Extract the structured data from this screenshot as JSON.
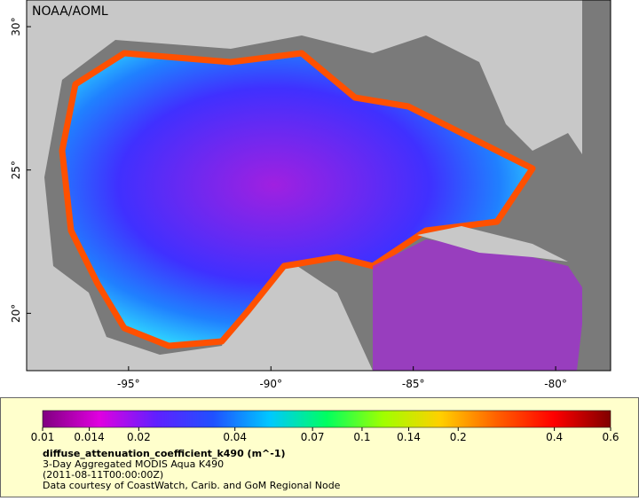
{
  "header": {
    "title": "NOAA/AOML"
  },
  "map": {
    "xlim": [
      -98.58,
      -78.07
    ],
    "ylim": [
      18.0,
      30.93
    ],
    "xticks": [
      {
        "value": -95,
        "label": "-95°"
      },
      {
        "value": -90,
        "label": "-90°"
      },
      {
        "value": -85,
        "label": "-85°"
      },
      {
        "value": -80,
        "label": "-80°"
      }
    ],
    "yticks": [
      {
        "value": 20,
        "label": "20°"
      },
      {
        "value": 25,
        "label": "25°"
      },
      {
        "value": 30,
        "label": "30°"
      }
    ]
  },
  "colorbar": {
    "scale": "log",
    "range": [
      0.01,
      0.6
    ],
    "ticks": [
      0.01,
      0.014,
      0.02,
      0.04,
      0.07,
      0.1,
      0.14,
      0.2,
      0.4,
      0.6
    ],
    "colors": [
      "#800080",
      "#e000e0",
      "#6020ff",
      "#2050ff",
      "#00c8ff",
      "#00ff60",
      "#a0ff00",
      "#ffd000",
      "#ff6000",
      "#ff0000",
      "#800000"
    ]
  },
  "caption": {
    "variable": "diffuse_attenuation_coefficient_k490 (m^-1)",
    "lines": [
      "3-Day Aggregated MODIS Aqua K490",
      "(2011-08-11T00:00:00Z)",
      "Data courtesy of CoastWatch, Carib. and GoM Regional Node"
    ]
  }
}
